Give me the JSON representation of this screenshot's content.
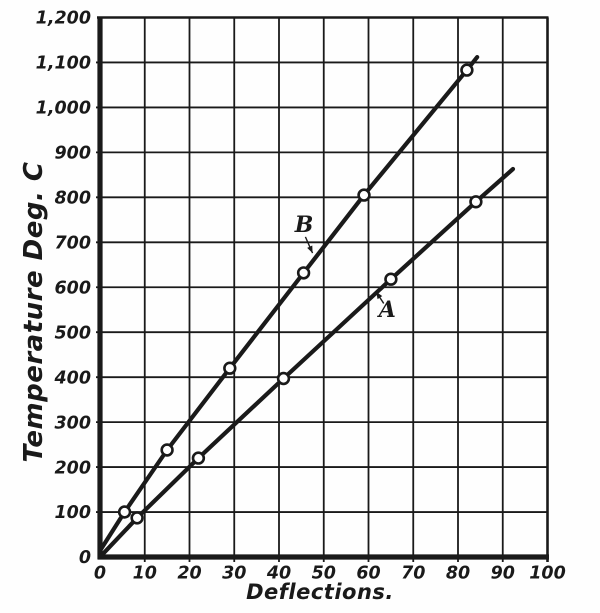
{
  "figure": {
    "background": "#fefefe",
    "ink": "#1a1a1a",
    "marker_fill": "#ffffff"
  },
  "chart_data": {
    "type": "line",
    "title": "",
    "xlabel": "Deflections.",
    "ylabel": "Temperature Deg. C",
    "xlim": [
      0,
      100
    ],
    "ylim": [
      0,
      1200
    ],
    "grid": "on",
    "legend_position": "inline-arrow-labels",
    "marker": "open-circle",
    "x_ticks": [
      0,
      10,
      20,
      30,
      40,
      50,
      60,
      70,
      80,
      90,
      100
    ],
    "x_tick_labels": [
      "0",
      "10",
      "20",
      "30",
      "40",
      "50",
      "60",
      "70",
      "80",
      "90",
      "100"
    ],
    "y_ticks": [
      0,
      100,
      200,
      300,
      400,
      500,
      600,
      700,
      800,
      900,
      1000,
      1100,
      1200
    ],
    "y_tick_labels": [
      "0",
      "100",
      "200",
      "300",
      "400",
      "500",
      "600",
      "700",
      "800",
      "900",
      "1,000",
      "1,100",
      "1,200"
    ],
    "series": [
      {
        "name": "B",
        "label": "B",
        "points": [
          [
            5.5,
            100
          ],
          [
            15,
            238
          ],
          [
            29,
            420
          ],
          [
            45.5,
            632
          ],
          [
            59,
            805
          ],
          [
            82,
            1083
          ]
        ],
        "line": [
          [
            0,
            14
          ],
          [
            5.5,
            100
          ],
          [
            15,
            238
          ],
          [
            29,
            420
          ],
          [
            45.5,
            632
          ],
          [
            59,
            805
          ],
          [
            82,
            1083
          ],
          [
            84.3,
            1112
          ]
        ],
        "label_pos": [
          45.6,
          738
        ],
        "arrow_from": [
          45.9,
          712
        ],
        "arrow_to": [
          47.5,
          676
        ]
      },
      {
        "name": "A",
        "label": "A",
        "points": [
          [
            8.3,
            87
          ],
          [
            22,
            220
          ],
          [
            41,
            397
          ],
          [
            65,
            618
          ],
          [
            84,
            790
          ]
        ],
        "line": [
          [
            0,
            0
          ],
          [
            8.3,
            87
          ],
          [
            22,
            220
          ],
          [
            41,
            397
          ],
          [
            65,
            618
          ],
          [
            84,
            790
          ],
          [
            92.3,
            863
          ]
        ],
        "label_pos": [
          64.2,
          549
        ],
        "arrow_from": [
          63.4,
          564
        ],
        "arrow_to": [
          61.7,
          590
        ]
      }
    ]
  }
}
